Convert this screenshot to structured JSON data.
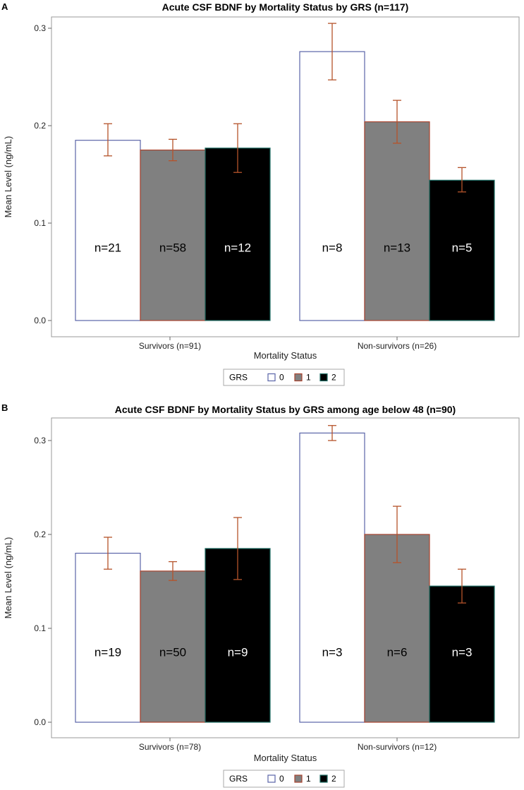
{
  "chart_data": [
    {
      "panel": "A",
      "type": "bar",
      "title": "Acute CSF BDNF by Mortality Status by GRS (n=117)",
      "xlabel": "Mortality Status",
      "ylabel": "Mean Level (ng/mL)",
      "ylim": [
        0,
        0.31
      ],
      "yticks": [
        "0.0",
        "0.1",
        "0.2",
        "0.3"
      ],
      "categories": [
        "Survivors (n=91)",
        "Non-survivors (n=26)"
      ],
      "legend": {
        "title": "GRS",
        "entries": [
          "0",
          "1",
          "2"
        ]
      },
      "series": [
        {
          "name": "0",
          "values": [
            0.185,
            0.276
          ],
          "err_low": [
            0.169,
            0.247
          ],
          "err_high": [
            0.202,
            0.305
          ],
          "labels": [
            "n=21",
            "n=8"
          ]
        },
        {
          "name": "1",
          "values": [
            0.175,
            0.204
          ],
          "err_low": [
            0.164,
            0.182
          ],
          "err_high": [
            0.186,
            0.226
          ],
          "labels": [
            "n=58",
            "n=13"
          ]
        },
        {
          "name": "2",
          "values": [
            0.177,
            0.144
          ],
          "err_low": [
            0.152,
            0.132
          ],
          "err_high": [
            0.202,
            0.157
          ],
          "labels": [
            "n=12",
            "n=5"
          ]
        }
      ]
    },
    {
      "panel": "B",
      "type": "bar",
      "title": "Acute CSF BDNF by Mortality Status by GRS among age below 48 (n=90)",
      "xlabel": "Mortality Status",
      "ylabel": "Mean Level (ng/mL)",
      "ylim": [
        0,
        0.33
      ],
      "yticks": [
        "0.0",
        "0.1",
        "0.2",
        "0.3"
      ],
      "categories": [
        "Survivors (n=78)",
        "Non-survivors (n=12)"
      ],
      "legend": {
        "title": "GRS",
        "entries": [
          "0",
          "1",
          "2"
        ]
      },
      "series": [
        {
          "name": "0",
          "values": [
            0.18,
            0.308
          ],
          "err_low": [
            0.163,
            0.3
          ],
          "err_high": [
            0.197,
            0.316
          ],
          "labels": [
            "n=19",
            "n=3"
          ]
        },
        {
          "name": "1",
          "values": [
            0.161,
            0.2
          ],
          "err_low": [
            0.151,
            0.17
          ],
          "err_high": [
            0.171,
            0.23
          ],
          "labels": [
            "n=50",
            "n=6"
          ]
        },
        {
          "name": "2",
          "values": [
            0.185,
            0.145
          ],
          "err_low": [
            0.152,
            0.127
          ],
          "err_high": [
            0.218,
            0.163
          ],
          "labels": [
            "n=9",
            "n=3"
          ]
        }
      ]
    }
  ],
  "colors": {
    "fill": [
      "#ffffff",
      "#808080",
      "#000000"
    ],
    "stroke": [
      "#5a64a8",
      "#a8432e",
      "#1e6d64"
    ],
    "label_text": [
      "#000000",
      "#000000",
      "#ffffff"
    ],
    "error_bar": "#b5532a",
    "frame": "#999999",
    "legend_frame": "#aaaaaa"
  }
}
